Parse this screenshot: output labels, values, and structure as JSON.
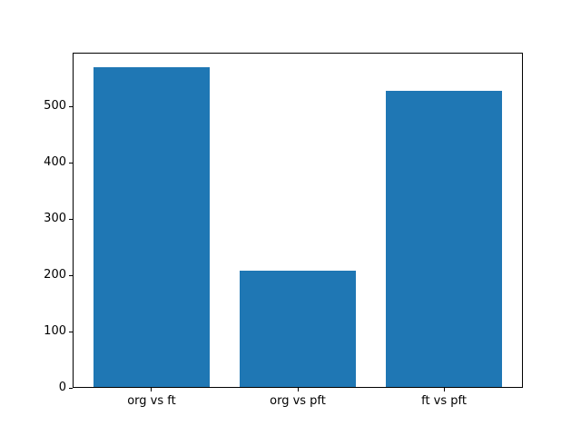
{
  "chart_data": {
    "type": "bar",
    "title": "",
    "xlabel": "",
    "ylabel": "",
    "categories": [
      "org vs ft",
      "org vs pft",
      "ft vs pft"
    ],
    "values": [
      568,
      206,
      526
    ],
    "yticks": [
      0,
      100,
      200,
      300,
      400,
      500
    ],
    "ylim": [
      0,
      596
    ],
    "xlim": [
      -0.54,
      2.54
    ],
    "bar_width_fraction": 0.8,
    "bar_color": "#1f77b4",
    "axis_color": "#000000",
    "background_color": "#ffffff",
    "grid": false,
    "legend": null
  }
}
